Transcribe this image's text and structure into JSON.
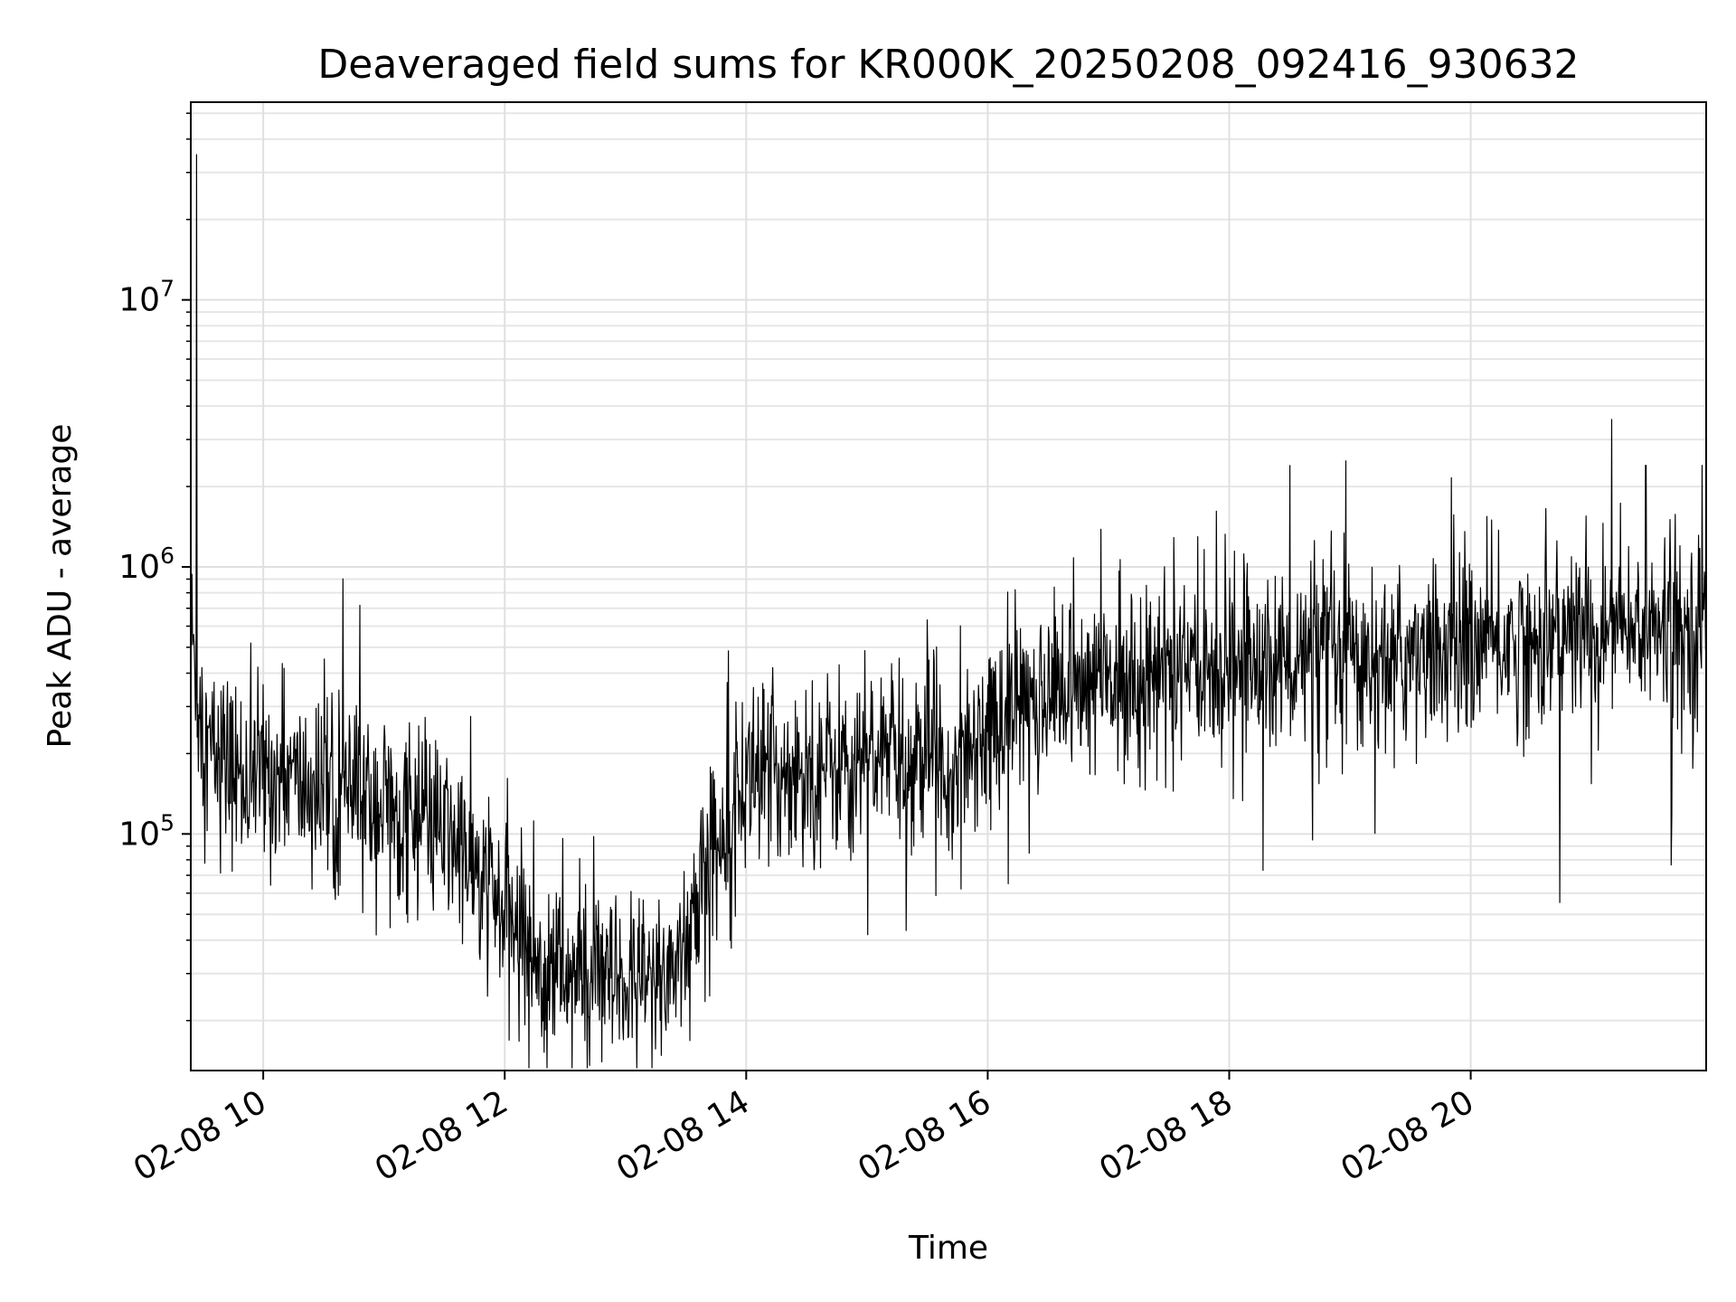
{
  "chart_data": {
    "type": "line",
    "title": "Deaveraged field sums for KR000K_20250208_092416_930632",
    "xlabel": "Time",
    "ylabel": "Peak ADU - average",
    "x_scale": "time",
    "y_scale": "log",
    "xlim": [
      "02-08 09:24",
      "02-08 21:57"
    ],
    "ylim": [
      13000,
      55000000
    ],
    "x_ticks": [
      "02-08 10",
      "02-08 12",
      "02-08 14",
      "02-08 16",
      "02-08 18",
      "02-08 20"
    ],
    "y_ticks": [
      {
        "value": 100000,
        "base": "10",
        "exp": "5"
      },
      {
        "value": 1000000,
        "base": "10",
        "exp": "6"
      },
      {
        "value": 10000000,
        "base": "10",
        "exp": "7"
      }
    ],
    "grid": true,
    "line_color": "#000000",
    "series": [
      {
        "x": [
          "02-08 09:24",
          "02-08 09:30",
          "02-08 09:40",
          "02-08 09:50",
          "02-08 10:00",
          "02-08 10:10",
          "02-08 10:20",
          "02-08 10:30",
          "02-08 10:40",
          "02-08 10:50",
          "02-08 11:00",
          "02-08 11:10",
          "02-08 11:20",
          "02-08 11:30",
          "02-08 11:40",
          "02-08 11:50",
          "02-08 12:00",
          "02-08 12:10",
          "02-08 12:20",
          "02-08 12:30",
          "02-08 12:40",
          "02-08 12:50",
          "02-08 13:00",
          "02-08 13:10",
          "02-08 13:20",
          "02-08 13:30",
          "02-08 13:40",
          "02-08 13:50",
          "02-08 14:00",
          "02-08 14:20",
          "02-08 14:40",
          "02-08 15:00",
          "02-08 15:20",
          "02-08 15:40",
          "02-08 16:00",
          "02-08 16:20",
          "02-08 16:40",
          "02-08 17:00",
          "02-08 17:20",
          "02-08 17:40",
          "02-08 18:00",
          "02-08 18:20",
          "02-08 18:40",
          "02-08 19:00",
          "02-08 19:20",
          "02-08 19:40",
          "02-08 20:00",
          "02-08 20:20",
          "02-08 20:40",
          "02-08 21:00",
          "02-08 21:20",
          "02-08 21:40",
          "02-08 21:57"
        ],
        "y": [
          600000,
          220000,
          190000,
          160000,
          170000,
          160000,
          150000,
          140000,
          140000,
          130000,
          130000,
          120000,
          110000,
          100000,
          85000,
          60000,
          50000,
          40000,
          33000,
          30000,
          28000,
          27000,
          27000,
          27000,
          30000,
          40000,
          70000,
          120000,
          160000,
          170000,
          180000,
          200000,
          190000,
          190000,
          250000,
          320000,
          350000,
          380000,
          400000,
          420000,
          430000,
          440000,
          440000,
          450000,
          460000,
          480000,
          500000,
          520000,
          550000,
          570000,
          580000,
          560000,
          580000
        ]
      }
    ],
    "spikes": [
      {
        "x": "02-08 09:27",
        "y": 35000000
      },
      {
        "x": "02-08 21:27",
        "y": 2400000
      },
      {
        "x": "02-08 21:55",
        "y": 2400000
      }
    ]
  }
}
